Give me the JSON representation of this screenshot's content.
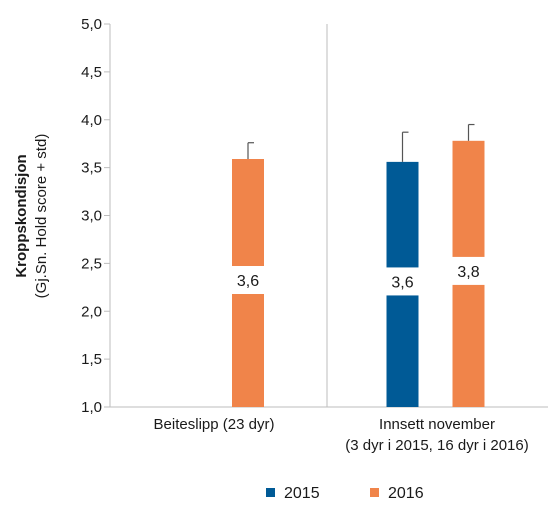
{
  "chart_data": {
    "type": "bar",
    "ylabel_line1": "Kroppskondisjon",
    "ylabel_line2": "(Gj.Sn. Hold score + std)",
    "ylim": [
      1.0,
      5.0
    ],
    "yticks": [
      "1,0",
      "1,5",
      "2,0",
      "2,5",
      "3,0",
      "3,5",
      "4,0",
      "4,5",
      "5,0"
    ],
    "ytick_values": [
      1.0,
      1.5,
      2.0,
      2.5,
      3.0,
      3.5,
      4.0,
      4.5,
      5.0
    ],
    "categories": [
      {
        "label_line1": "Beiteslipp (23 dyr)",
        "label_line2": ""
      },
      {
        "label_line1": "Innsett november",
        "label_line2": "(3 dyr i 2015, 16 dyr i 2016)"
      }
    ],
    "series": [
      {
        "name": "2015",
        "color": "#005a96",
        "values": [
          null,
          3.56
        ],
        "errors": [
          null,
          0.31
        ],
        "data_labels": [
          null,
          "3,6"
        ]
      },
      {
        "name": "2016",
        "color": "#f0844a",
        "values": [
          3.59,
          3.78
        ],
        "errors": [
          0.17,
          0.17
        ],
        "data_labels": [
          "3,6",
          "3,8"
        ]
      }
    ],
    "grid": false,
    "category_separator": true,
    "legend_position": "bottom-center"
  }
}
